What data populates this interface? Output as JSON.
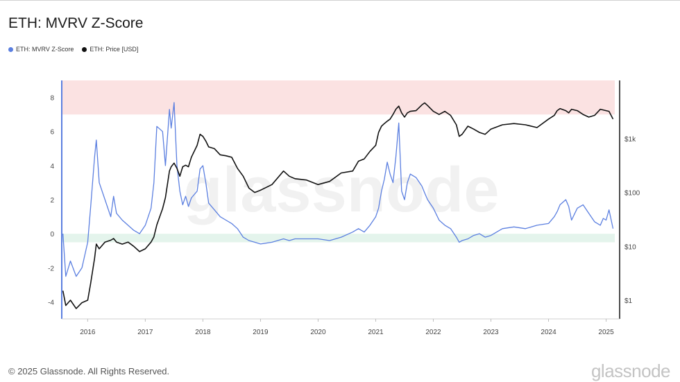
{
  "title": "ETH: MVRV Z-Score",
  "legend": [
    {
      "name": "ETH: MVRV Z-Score",
      "color": "#5b7fe0"
    },
    {
      "name": "ETH: Price [USD]",
      "color": "#111111"
    }
  ],
  "footer": "© 2025 Glassnode. All Rights Reserved.",
  "brand": "glassnode",
  "watermark": "glassnode",
  "chart_data": {
    "type": "line",
    "x_domain": [
      2015.55,
      2025.15
    ],
    "left_axis": {
      "ticks": [
        8,
        6,
        4,
        2,
        0,
        -2,
        -4
      ],
      "range": [
        -5,
        9
      ]
    },
    "right_axis": {
      "ticks": [
        "$1k",
        "$100",
        "$10",
        "$1"
      ],
      "tick_values": [
        1000,
        100,
        10,
        1
      ],
      "scale": "log",
      "range": [
        0.45,
        12000
      ]
    },
    "x_ticks": [
      "2016",
      "2017",
      "2018",
      "2019",
      "2020",
      "2021",
      "2022",
      "2023",
      "2024",
      "2025"
    ],
    "x_tick_values": [
      2016,
      2017,
      2018,
      2019,
      2020,
      2021,
      2022,
      2023,
      2024,
      2025
    ],
    "bands": [
      {
        "from": 7,
        "to": 9,
        "color": "#fbe2e2"
      },
      {
        "from": -0.5,
        "to": 0,
        "color": "#e4f4ec"
      }
    ],
    "series": [
      {
        "name": "ETH: MVRV Z-Score",
        "axis": "left",
        "color": "#5b7fe0",
        "x": [
          2015.57,
          2015.62,
          2015.7,
          2015.8,
          2015.9,
          2016.0,
          2016.05,
          2016.12,
          2016.15,
          2016.2,
          2016.3,
          2016.4,
          2016.45,
          2016.5,
          2016.6,
          2016.7,
          2016.8,
          2016.9,
          2017.0,
          2017.1,
          2017.15,
          2017.2,
          2017.3,
          2017.35,
          2017.42,
          2017.45,
          2017.5,
          2017.55,
          2017.6,
          2017.65,
          2017.7,
          2017.75,
          2017.8,
          2017.9,
          2017.95,
          2018.0,
          2018.05,
          2018.1,
          2018.2,
          2018.3,
          2018.4,
          2018.5,
          2018.6,
          2018.7,
          2018.8,
          2018.9,
          2019.0,
          2019.2,
          2019.4,
          2019.5,
          2019.6,
          2019.8,
          2020.0,
          2020.2,
          2020.4,
          2020.6,
          2020.7,
          2020.8,
          2020.9,
          2021.0,
          2021.05,
          2021.1,
          2021.15,
          2021.2,
          2021.25,
          2021.3,
          2021.35,
          2021.4,
          2021.45,
          2021.5,
          2021.55,
          2021.6,
          2021.7,
          2021.8,
          2021.85,
          2021.9,
          2022.0,
          2022.1,
          2022.2,
          2022.3,
          2022.4,
          2022.45,
          2022.5,
          2022.6,
          2022.7,
          2022.8,
          2022.9,
          2023.0,
          2023.2,
          2023.4,
          2023.6,
          2023.8,
          2024.0,
          2024.1,
          2024.15,
          2024.2,
          2024.3,
          2024.35,
          2024.4,
          2024.5,
          2024.6,
          2024.7,
          2024.8,
          2024.9,
          2024.95,
          2025.0,
          2025.05,
          2025.12
        ],
        "y": [
          0,
          -2.5,
          -1.6,
          -2.5,
          -2.0,
          -0.5,
          1.5,
          4.5,
          5.5,
          3.0,
          2.0,
          1.0,
          2.2,
          1.2,
          0.8,
          0.5,
          0.2,
          0.0,
          0.5,
          1.5,
          3.0,
          6.3,
          6.0,
          4.0,
          7.3,
          6.2,
          7.7,
          4.0,
          2.5,
          1.7,
          2.2,
          1.6,
          2.1,
          2.5,
          3.8,
          4.0,
          3.0,
          1.8,
          1.4,
          1.0,
          0.8,
          0.6,
          0.3,
          -0.2,
          -0.4,
          -0.5,
          -0.6,
          -0.5,
          -0.3,
          -0.4,
          -0.3,
          -0.3,
          -0.3,
          -0.4,
          -0.2,
          0.1,
          0.3,
          0.1,
          0.5,
          1.0,
          1.5,
          2.5,
          3.2,
          4.2,
          3.5,
          3.0,
          4.5,
          6.5,
          2.5,
          2.0,
          3.0,
          3.5,
          3.3,
          2.8,
          2.4,
          2.0,
          1.5,
          0.8,
          0.5,
          0.3,
          -0.2,
          -0.5,
          -0.4,
          -0.3,
          -0.1,
          0.0,
          -0.2,
          -0.1,
          0.3,
          0.4,
          0.3,
          0.5,
          0.6,
          1.0,
          1.3,
          1.7,
          2.0,
          1.6,
          0.8,
          1.5,
          1.7,
          1.2,
          0.7,
          0.5,
          0.9,
          0.8,
          1.4,
          0.3
        ]
      },
      {
        "name": "ETH: Price [USD]",
        "axis": "right",
        "color": "#111111",
        "x": [
          2015.57,
          2015.62,
          2015.7,
          2015.8,
          2015.9,
          2016.0,
          2016.05,
          2016.12,
          2016.15,
          2016.2,
          2016.3,
          2016.4,
          2016.45,
          2016.5,
          2016.6,
          2016.7,
          2016.8,
          2016.9,
          2017.0,
          2017.1,
          2017.15,
          2017.2,
          2017.3,
          2017.35,
          2017.42,
          2017.45,
          2017.5,
          2017.55,
          2017.6,
          2017.65,
          2017.7,
          2017.75,
          2017.8,
          2017.9,
          2017.95,
          2018.0,
          2018.05,
          2018.1,
          2018.2,
          2018.3,
          2018.4,
          2018.5,
          2018.6,
          2018.7,
          2018.8,
          2018.9,
          2019.0,
          2019.2,
          2019.4,
          2019.5,
          2019.6,
          2019.8,
          2020.0,
          2020.2,
          2020.4,
          2020.6,
          2020.7,
          2020.8,
          2020.9,
          2021.0,
          2021.05,
          2021.1,
          2021.15,
          2021.2,
          2021.25,
          2021.3,
          2021.35,
          2021.4,
          2021.45,
          2021.5,
          2021.55,
          2021.6,
          2021.7,
          2021.8,
          2021.85,
          2021.9,
          2022.0,
          2022.1,
          2022.2,
          2022.3,
          2022.4,
          2022.45,
          2022.5,
          2022.6,
          2022.7,
          2022.8,
          2022.9,
          2023.0,
          2023.2,
          2023.4,
          2023.6,
          2023.8,
          2024.0,
          2024.1,
          2024.15,
          2024.2,
          2024.3,
          2024.35,
          2024.4,
          2024.5,
          2024.6,
          2024.7,
          2024.8,
          2024.9,
          2024.95,
          2025.0,
          2025.05,
          2025.12
        ],
        "y": [
          1.5,
          0.8,
          1.0,
          0.7,
          0.9,
          1.0,
          2.0,
          6.0,
          11.0,
          9.0,
          12.0,
          13.0,
          14.0,
          12.0,
          11.0,
          12.0,
          10.0,
          8.0,
          9.0,
          12.0,
          15.0,
          25.0,
          50.0,
          80.0,
          250.0,
          300.0,
          350.0,
          280.0,
          200.0,
          300.0,
          320.0,
          300.0,
          450.0,
          750.0,
          1200.0,
          1100.0,
          900.0,
          700.0,
          650.0,
          500.0,
          480.0,
          450.0,
          280.0,
          200.0,
          120.0,
          100.0,
          110.0,
          140.0,
          250.0,
          200.0,
          180.0,
          170.0,
          140.0,
          160.0,
          230.0,
          250.0,
          380.0,
          420.0,
          580.0,
          750.0,
          1300.0,
          1700.0,
          1900.0,
          2100.0,
          2300.0,
          2800.0,
          3500.0,
          4000.0,
          3000.0,
          2500.0,
          3000.0,
          3200.0,
          3300.0,
          4200.0,
          4600.0,
          4100.0,
          3200.0,
          2800.0,
          3200.0,
          2700.0,
          1800.0,
          1100.0,
          1200.0,
          1700.0,
          1500.0,
          1300.0,
          1200.0,
          1500.0,
          1800.0,
          1900.0,
          1800.0,
          1600.0,
          2300.0,
          2700.0,
          3300.0,
          3600.0,
          3300.0,
          3000.0,
          3500.0,
          3300.0,
          2800.0,
          2500.0,
          2700.0,
          3500.0,
          3400.0,
          3300.0,
          3200.0,
          2300.0
        ]
      }
    ]
  }
}
